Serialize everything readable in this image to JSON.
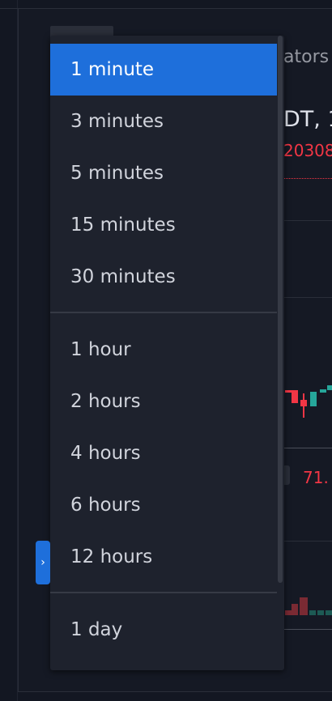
{
  "background": {
    "indicators_text": "ators",
    "symbol_text": "DT, 1",
    "price_text": "20308",
    "value_text": "71."
  },
  "colors": {
    "accent": "#1e6fdb",
    "menu_bg": "#1e222d",
    "down": "#f23645",
    "up": "#26a69a"
  },
  "dropdown": {
    "items": [
      {
        "label": "1 minute",
        "selected": true
      },
      {
        "label": "3 minutes"
      },
      {
        "label": "5 minutes"
      },
      {
        "label": "15 minutes"
      },
      {
        "label": "30 minutes"
      },
      {
        "label": "1 hour"
      },
      {
        "label": "2 hours"
      },
      {
        "label": "4 hours"
      },
      {
        "label": "6 hours"
      },
      {
        "label": "12 hours"
      },
      {
        "label": "1 day"
      }
    ]
  },
  "collapse_handle": {
    "icon": "chevron-right-icon",
    "glyph": "›"
  }
}
